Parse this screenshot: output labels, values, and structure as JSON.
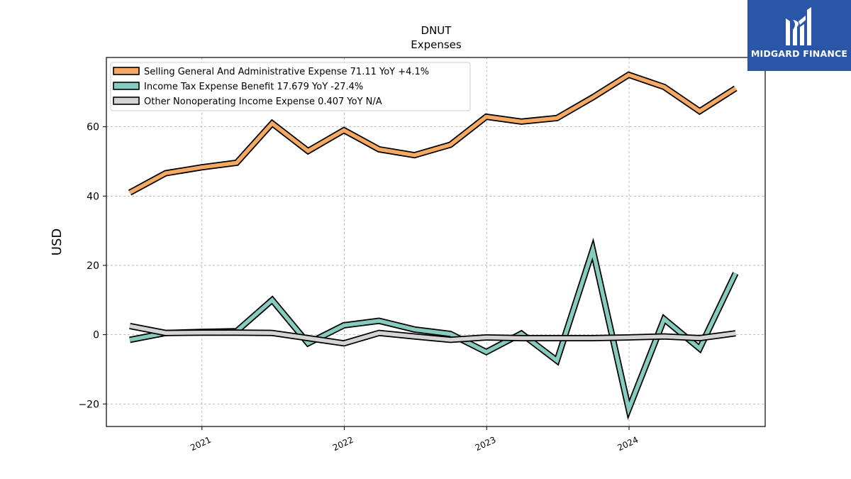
{
  "brand": {
    "name": "MIDGARD FINANCE",
    "bg_color": "#2b56a8"
  },
  "chart_data": {
    "type": "line",
    "title": "DNUT",
    "subtitle": "Expenses",
    "ylabel": "USD",
    "xlabel": "",
    "ylim": [
      -26.5,
      80
    ],
    "xlim": [
      "2020-05-01",
      "2024-12-15"
    ],
    "yticks": [
      -20,
      0,
      20,
      40,
      60
    ],
    "xticks": [
      "2021-01-01",
      "2022-01-01",
      "2023-01-01",
      "2024-01-01"
    ],
    "xtick_labels": [
      "2021",
      "2022",
      "2023",
      "2024"
    ],
    "grid": true,
    "legend_position": "top-left",
    "x": [
      "2020-06-30",
      "2020-09-30",
      "2020-12-31",
      "2021-03-31",
      "2021-06-30",
      "2021-09-30",
      "2021-12-31",
      "2022-03-31",
      "2022-06-30",
      "2022-09-30",
      "2022-12-31",
      "2023-03-31",
      "2023-06-30",
      "2023-09-30",
      "2023-12-31",
      "2024-03-31",
      "2024-06-30",
      "2024-09-30"
    ],
    "series": [
      {
        "name": "Selling General And Administrative Expense",
        "legend": "Selling General And Administrative Expense  71.11 YoY +4.1%",
        "color": "#f5a963",
        "values": [
          41.0,
          46.6,
          48.3,
          49.6,
          61.0,
          53.0,
          59.0,
          53.5,
          51.8,
          54.8,
          62.9,
          61.5,
          62.5,
          68.5,
          75.0,
          71.5,
          64.5,
          71.1
        ]
      },
      {
        "name": "Income Tax Expense Benefit",
        "legend": "Income Tax Expense Benefit  17.679 YoY -27.4%",
        "color": "#86cbbd",
        "values": [
          -1.5,
          0.5,
          0.8,
          1.0,
          10.0,
          -2.5,
          2.7,
          4.0,
          1.5,
          0.2,
          -5.0,
          0.3,
          -7.5,
          24.5,
          -21.5,
          4.5,
          -4.0,
          17.7
        ]
      },
      {
        "name": "Other Nonoperating Income Expense",
        "legend": "Other Nonoperating Income Expense  0.407 YoY N/A",
        "color": "#d4d4d4",
        "values": [
          2.5,
          0.5,
          0.6,
          0.6,
          0.5,
          -1.0,
          -2.5,
          0.5,
          -0.5,
          -1.5,
          -0.8,
          -1.0,
          -1.0,
          -1.0,
          -0.8,
          -0.5,
          -1.0,
          0.4
        ]
      }
    ]
  }
}
